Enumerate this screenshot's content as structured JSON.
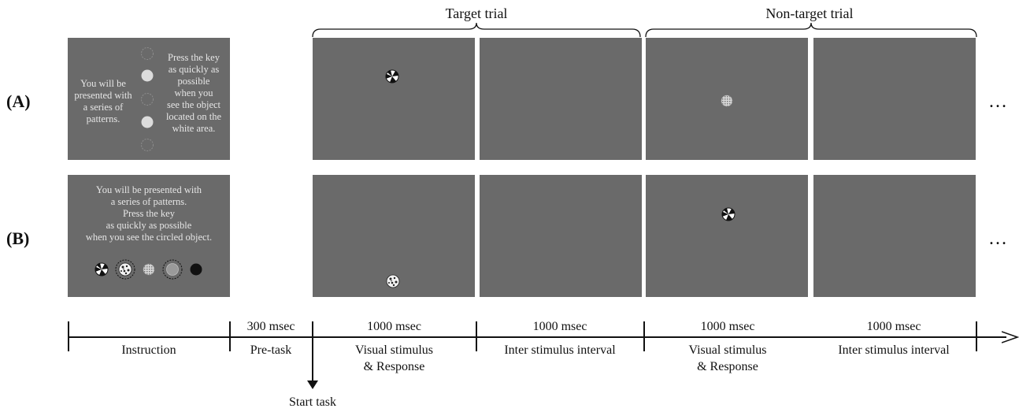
{
  "trials": {
    "target_label": "Target trial",
    "nontarget_label": "Non-target trial"
  },
  "rows": {
    "a_label": "(A)",
    "b_label": "(B)",
    "ellipsis": "…"
  },
  "instruction_a": {
    "left_lines": [
      "You will be",
      "presented with",
      "a series of",
      "patterns."
    ],
    "right_lines": [
      "Press the key",
      "as quickly as",
      "possible",
      "when you",
      "see the object",
      "located on the",
      "white area."
    ]
  },
  "instruction_b": {
    "lines": [
      "You will be presented with",
      "a series of patterns.",
      "Press the key",
      "as quickly as possible",
      "when you see the circled object."
    ]
  },
  "timeline": {
    "segments": [
      {
        "duration": "",
        "label": "Instruction"
      },
      {
        "duration": "300 msec",
        "label": "Pre-task"
      },
      {
        "duration": "1000 msec",
        "label_1": "Visual stimulus",
        "label_2": "& Response"
      },
      {
        "duration": "1000 msec",
        "label": "Inter stimulus interval"
      },
      {
        "duration": "1000 msec",
        "label_1": "Visual stimulus",
        "label_2": "& Response"
      },
      {
        "duration": "1000 msec",
        "label": "Inter stimulus interval"
      }
    ],
    "start_task": "Start task"
  },
  "colors": {
    "panel": "#6a6a6a",
    "text": "#111111"
  }
}
